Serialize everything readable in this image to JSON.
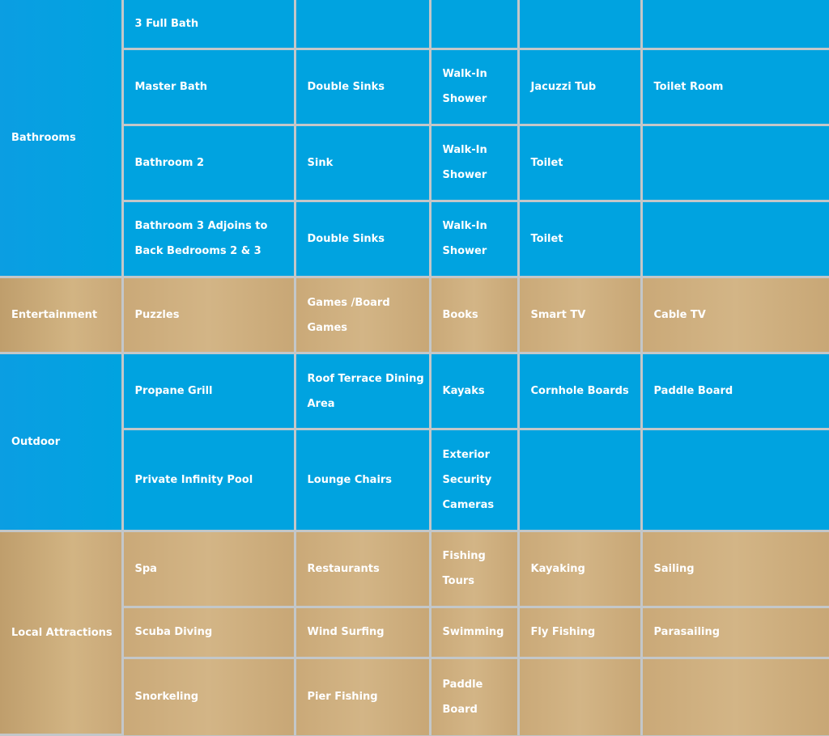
{
  "sections": [
    {
      "category": "Bathrooms",
      "theme": "blue",
      "rows": [
        [
          "3 Full Bath",
          "",
          "",
          "",
          ""
        ],
        [
          "Master Bath",
          "Double Sinks",
          "Walk-In Shower",
          "Jacuzzi Tub",
          "Toilet Room"
        ],
        [
          "Bathroom 2",
          "Sink",
          "Walk-In Shower",
          "Toilet",
          ""
        ],
        [
          "Bathroom 3 Adjoins to Back Bedrooms 2 & 3",
          "Double Sinks",
          "Walk-In Shower",
          "Toilet",
          ""
        ]
      ]
    },
    {
      "category": "Entertainment",
      "theme": "tan",
      "rows": [
        [
          "Puzzles",
          "Games /Board Games",
          "Books",
          "Smart TV",
          "Cable TV"
        ]
      ]
    },
    {
      "category": "Outdoor",
      "theme": "blue",
      "rows": [
        [
          "Propane Grill",
          "Roof Terrace Dining Area",
          "Kayaks",
          "Cornhole Boards",
          "Paddle Board"
        ],
        [
          "Private Infinity Pool",
          "Lounge Chairs",
          "Exterior Security Cameras",
          "",
          ""
        ]
      ]
    },
    {
      "category": "Local Attractions",
      "theme": "tan",
      "rows": [
        [
          "Spa",
          "Restaurants",
          "Fishing Tours",
          "Kayaking",
          "Sailing"
        ],
        [
          "Scuba Diving",
          "Wind Surfing",
          "Swimming",
          "Fly Fishing",
          "Parasailing"
        ],
        [
          "Snorkeling",
          "Pier Fishing",
          "Paddle Board",
          "",
          ""
        ]
      ]
    }
  ],
  "colors": {
    "blue": "#00a3e0",
    "tan": "#cfaf7d",
    "grid": "#c3c7c9",
    "text": "#ffffff"
  }
}
